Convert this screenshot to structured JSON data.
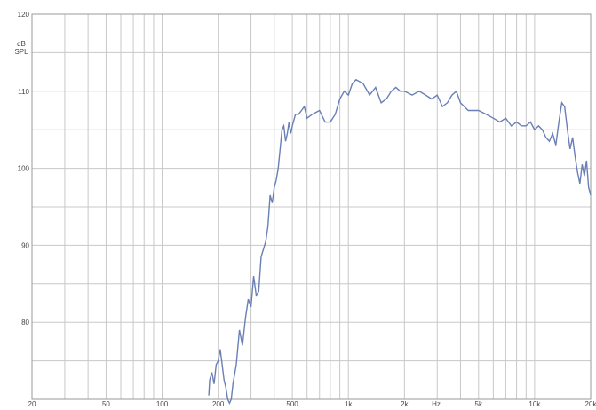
{
  "chart_data": {
    "type": "line",
    "title": "",
    "xlabel": "Hz",
    "ylabel": "dB SPL",
    "ylabel_lines": [
      "dB",
      "SPL"
    ],
    "x_scale": "log",
    "xlim": [
      20,
      20000
    ],
    "ylim": [
      70,
      120
    ],
    "grid": true,
    "x_ticks": [
      {
        "value": 20,
        "label": "20"
      },
      {
        "value": 50,
        "label": "50"
      },
      {
        "value": 100,
        "label": "100"
      },
      {
        "value": 200,
        "label": "200"
      },
      {
        "value": 500,
        "label": "500"
      },
      {
        "value": 1000,
        "label": "1k"
      },
      {
        "value": 2000,
        "label": "2k"
      },
      {
        "value": 5000,
        "label": "5k"
      },
      {
        "value": 10000,
        "label": "10k"
      },
      {
        "value": 20000,
        "label": "20k"
      }
    ],
    "y_ticks": [
      {
        "value": 120,
        "label": "120"
      },
      {
        "value": 110,
        "label": "110"
      },
      {
        "value": 100,
        "label": "100"
      },
      {
        "value": 90,
        "label": "90"
      },
      {
        "value": 80,
        "label": "80"
      }
    ],
    "colors": {
      "line": "#6a7fb5",
      "grid": "#c8c8c8",
      "axis": "#999999"
    },
    "series": [
      {
        "x": [
          178,
          180,
          185,
          190,
          195,
          200,
          205,
          210,
          215,
          220,
          225,
          230,
          235,
          240,
          250,
          260,
          270,
          280,
          290,
          300,
          310,
          320,
          330,
          340,
          350,
          360,
          370,
          380,
          390,
          400,
          410,
          420,
          430,
          440,
          450,
          460,
          470,
          480,
          490,
          500,
          520,
          540,
          560,
          580,
          600,
          640,
          700,
          750,
          800,
          850,
          900,
          950,
          1000,
          1050,
          1100,
          1200,
          1300,
          1400,
          1500,
          1600,
          1700,
          1800,
          1900,
          2000,
          2200,
          2400,
          2600,
          2800,
          3000,
          3200,
          3400,
          3600,
          3800,
          4000,
          4400,
          5000,
          5500,
          6000,
          6500,
          7000,
          7500,
          8000,
          8500,
          9000,
          9500,
          10000,
          10500,
          11000,
          11500,
          12000,
          12500,
          13000,
          13500,
          14000,
          14500,
          15000,
          15500,
          16000,
          16500,
          17000,
          17500,
          18000,
          18500,
          19000,
          19500,
          20000
        ],
        "y": [
          70.5,
          72.5,
          73.5,
          72,
          74.5,
          75,
          76.5,
          74.5,
          72.5,
          71.5,
          70,
          69.5,
          70,
          72,
          74.5,
          79,
          77,
          80.5,
          83,
          82,
          86,
          83.5,
          84,
          88.5,
          89.5,
          90.5,
          92.5,
          96.5,
          95.5,
          97.5,
          98.5,
          100,
          102.5,
          105,
          105.5,
          103.5,
          104.5,
          106,
          104.5,
          105.5,
          107,
          107,
          107.5,
          108,
          106.5,
          107,
          107.5,
          106,
          106,
          107,
          109,
          110,
          109.5,
          111,
          111.5,
          111,
          109.5,
          110.5,
          108.5,
          109,
          110,
          110.5,
          110,
          110,
          109.5,
          110,
          109.5,
          109,
          109.5,
          108,
          108.5,
          109.5,
          110,
          108.5,
          107.5,
          107.5,
          107,
          106.5,
          106,
          106.5,
          105.5,
          106,
          105.5,
          105.5,
          106,
          105,
          105.5,
          105,
          104,
          103.5,
          104.5,
          103,
          106,
          108.5,
          108,
          105,
          102.5,
          104,
          101.5,
          99.5,
          98,
          100.5,
          99,
          101,
          97.5,
          96.5
        ]
      }
    ]
  }
}
